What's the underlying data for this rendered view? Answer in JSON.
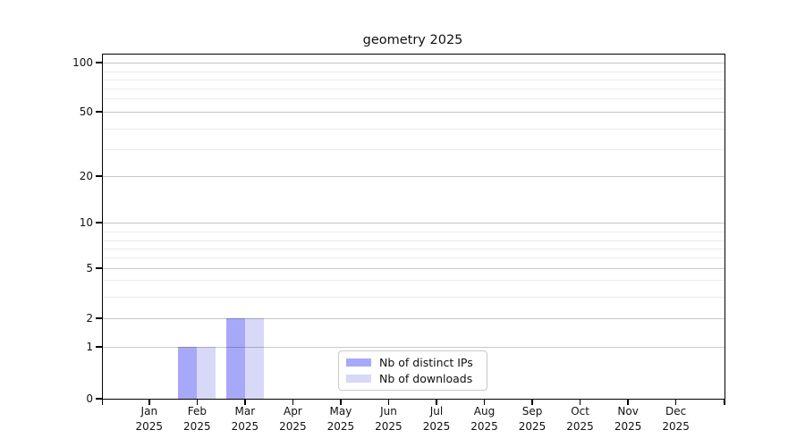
{
  "figure": {
    "background": "#ffffff"
  },
  "chart_data": {
    "type": "bar",
    "title": "geometry 2025",
    "categories": [
      "Jan 2025",
      "Feb 2025",
      "Mar 2025",
      "Apr 2025",
      "May 2025",
      "Jun 2025",
      "Jul 2025",
      "Aug 2025",
      "Sep 2025",
      "Oct 2025",
      "Nov 2025",
      "Dec 2025"
    ],
    "series": [
      {
        "name": "Nb of distinct IPs",
        "color": "#a8a8f8",
        "values": [
          0,
          1,
          2,
          0,
          0,
          0,
          0,
          0,
          0,
          0,
          0,
          0
        ]
      },
      {
        "name": "Nb of downloads",
        "color": "#d8d8f8",
        "values": [
          0,
          1,
          2,
          0,
          0,
          0,
          0,
          0,
          0,
          0,
          0,
          0
        ]
      }
    ],
    "xlabel": "",
    "ylabel": "",
    "ylim": [
      0,
      100
    ],
    "yscale": "symlog",
    "yticks_major": [
      0,
      1,
      2,
      5,
      10,
      20,
      50,
      100
    ],
    "yticks_minor": [
      3,
      4,
      6,
      7,
      8,
      9,
      30,
      40,
      60,
      70,
      80,
      90
    ],
    "grid": true,
    "legend": {
      "position": "lower center",
      "border_color": "#c9c9c9"
    }
  }
}
